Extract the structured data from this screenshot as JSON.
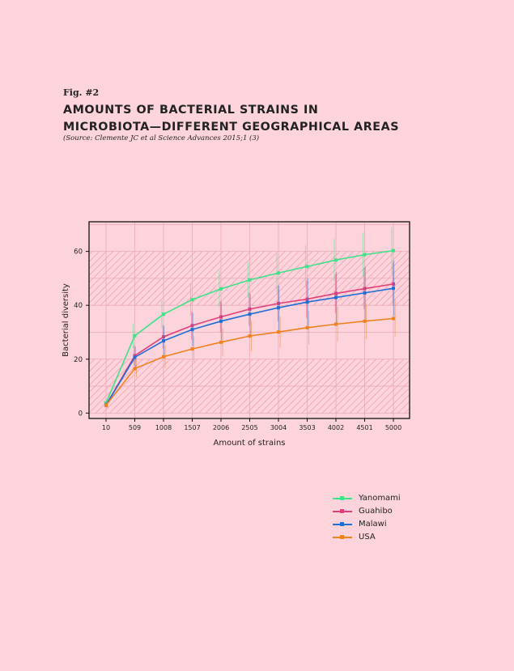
{
  "fig_label": "Fig. #2",
  "title_lines": [
    "AMOUNTS OF BACTERIAL STRAINS IN",
    "MICROBIOTA—DIFFERENT GEOGRAPHICAL AREAS"
  ],
  "source": "(Source: Clemente JC et al Science Advances 2015;1 (3)",
  "chart_data": {
    "type": "line",
    "categories": [
      "10",
      "509",
      "1008",
      "1507",
      "2006",
      "2505",
      "3004",
      "3503",
      "4002",
      "4501",
      "5000"
    ],
    "xlabel": "Amount of strains",
    "ylabel": "Bacterial diversity",
    "ylim": [
      -2,
      71
    ],
    "yticks": [
      0,
      20,
      40,
      60
    ],
    "grid": true,
    "legend_position": "bottom-right",
    "series": [
      {
        "name": "Yanomami",
        "color": "#3de387",
        "values": [
          3.8,
          28.7,
          36.7,
          42.1,
          46.1,
          49.4,
          52.0,
          54.4,
          56.8,
          58.8,
          60.3
        ],
        "err": [
          0.8,
          4.5,
          5.2,
          6.0,
          6.8,
          6.6,
          7.2,
          7.8,
          7.9,
          8.2,
          8.7
        ]
      },
      {
        "name": "Guahibo",
        "color": "#e0407a",
        "values": [
          3.0,
          21.3,
          28.3,
          32.5,
          35.7,
          38.6,
          40.7,
          42.3,
          44.4,
          46.2,
          47.9
        ],
        "err": [
          0.8,
          3.8,
          4.4,
          5.2,
          5.8,
          6.2,
          6.6,
          7.0,
          7.2,
          7.7,
          8.0
        ]
      },
      {
        "name": "Malawi",
        "color": "#1f6fd6",
        "values": [
          2.9,
          20.7,
          26.8,
          31.0,
          34.1,
          36.7,
          39.1,
          41.2,
          42.9,
          44.6,
          46.3
        ],
        "err": [
          0.8,
          4.0,
          5.5,
          6.2,
          7.0,
          7.5,
          8.3,
          8.8,
          9.4,
          9.8,
          10.3
        ]
      },
      {
        "name": "USA",
        "color": "#f0821e",
        "values": [
          2.9,
          16.5,
          20.9,
          23.8,
          26.3,
          28.6,
          30.1,
          31.7,
          33.0,
          34.1,
          35.1
        ],
        "err": [
          0.8,
          3.4,
          4.2,
          4.8,
          5.2,
          5.6,
          5.8,
          6.2,
          6.5,
          6.7,
          6.9
        ]
      }
    ]
  }
}
